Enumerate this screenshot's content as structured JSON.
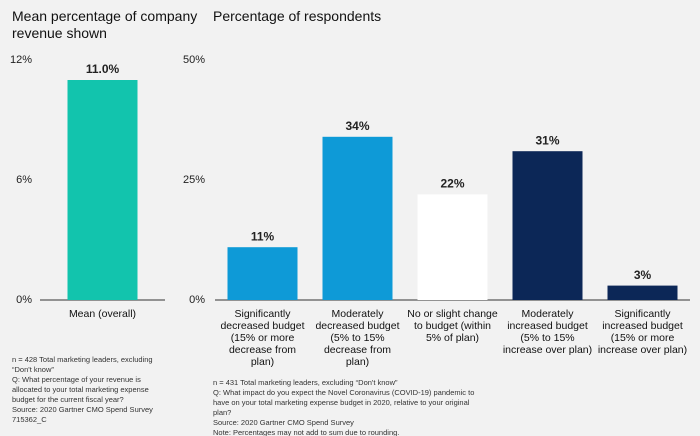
{
  "chart_data": [
    {
      "type": "bar",
      "title": "Mean percentage of company revenue shown",
      "categories": [
        "Mean (overall)"
      ],
      "values": [
        11.0
      ],
      "value_labels": [
        "11.0%"
      ],
      "color": "#12c4ad",
      "ylim": [
        0,
        12
      ],
      "yticks": [
        {
          "value": 0,
          "label": "0%"
        },
        {
          "value": 6,
          "label": "6%"
        },
        {
          "value": 12,
          "label": "12%"
        }
      ],
      "grid": false,
      "notes": [
        "n = 428 Total marketing leaders, excluding “Don't know”",
        "Q: What percentage of your revenue is allocated to your total marketing expense budget for the current fiscal year?",
        "Source: 2020 Gartner CMO Spend Survey",
        "715362_C"
      ]
    },
    {
      "type": "bar",
      "title": "Percentage of respondents",
      "categories": [
        "Significantly decreased budget (15% or more decrease from plan)",
        "Moderately decreased budget (5% to 15% decrease from plan)",
        "No or slight change to budget (within 5% of plan)",
        "Moderately increased budget (5% to 15% increase over plan)",
        "Significantly increased budget (15% or more increase over plan)"
      ],
      "values": [
        11,
        34,
        22,
        31,
        3
      ],
      "value_labels": [
        "11%",
        "34%",
        "22%",
        "31%",
        "3%"
      ],
      "colors": [
        "#0e9ad7",
        "#0e9ad7",
        "#ffffff",
        "#0c2757",
        "#0c2757"
      ],
      "ylim": [
        0,
        50
      ],
      "yticks": [
        {
          "value": 0,
          "label": "0%"
        },
        {
          "value": 25,
          "label": "25%"
        },
        {
          "value": 50,
          "label": "50%"
        }
      ],
      "grid": false,
      "notes": [
        "n = 431 Total marketing leaders, excluding “Don't know”",
        "Q: What impact do you expect the Novel Coronavirus (COVID-19) pandemic to have on your total marketing expense budget in 2020, relative to your original plan?",
        "Source: 2020 Gartner CMO Spend Survey",
        "Note: Percentages may not add to sum due to rounding."
      ]
    }
  ]
}
